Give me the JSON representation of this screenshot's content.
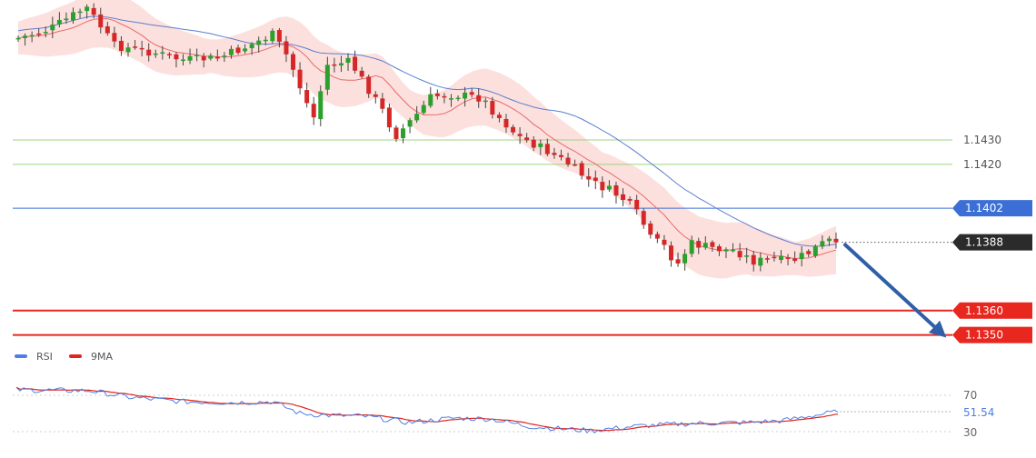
{
  "chart_data": [
    {
      "type": "candlestick",
      "title": "",
      "xlabel": "",
      "ylabel": "",
      "y_range": [
        1.1318,
        1.1532
      ],
      "overlays": [
        "bollinger-bands",
        "moving-averages"
      ],
      "horizontal_levels": [
        {
          "value": 1.143,
          "label": "1.1430",
          "color": "#9ed47c",
          "style": "thin-line",
          "label_style": "plain-text"
        },
        {
          "value": 1.142,
          "label": "1.1420",
          "color": "#9ed47c",
          "style": "thin-line",
          "label_style": "plain-text"
        },
        {
          "value": 1.1402,
          "label": "1.1402",
          "color": "#3b6fd6",
          "style": "thin-line",
          "label_style": "blue-tag"
        },
        {
          "value": 1.1388,
          "label": "1.1388",
          "color": "#333333",
          "style": "dotted-line",
          "label_style": "dark-tag"
        },
        {
          "value": 1.136,
          "label": "1.1360",
          "color": "#e8271f",
          "style": "thick-line",
          "label_style": "red-tag"
        },
        {
          "value": 1.135,
          "label": "1.1350",
          "color": "#e8271f",
          "style": "thick-line",
          "label_style": "red-tag"
        }
      ],
      "forecast_arrow": {
        "from_price": 1.1387,
        "to_price": 1.135,
        "direction": "down",
        "color": "#2f5fa7"
      },
      "colors": {
        "bull": "#2ca02c",
        "bear": "#d62728",
        "bands_fill": "#fbd5d2",
        "upper_ma": "#5b7fd0",
        "lower_ma": "#e86a6a"
      }
    },
    {
      "type": "line",
      "legend": [
        {
          "name": "RSI",
          "color": "#4e7fe6"
        },
        {
          "name": "9MA",
          "color": "#e0261b"
        }
      ],
      "y_ticks": [
        "70",
        "30"
      ],
      "levels": [
        70,
        30
      ],
      "current_value_label": "51.54",
      "current_value": 51.54
    }
  ]
}
